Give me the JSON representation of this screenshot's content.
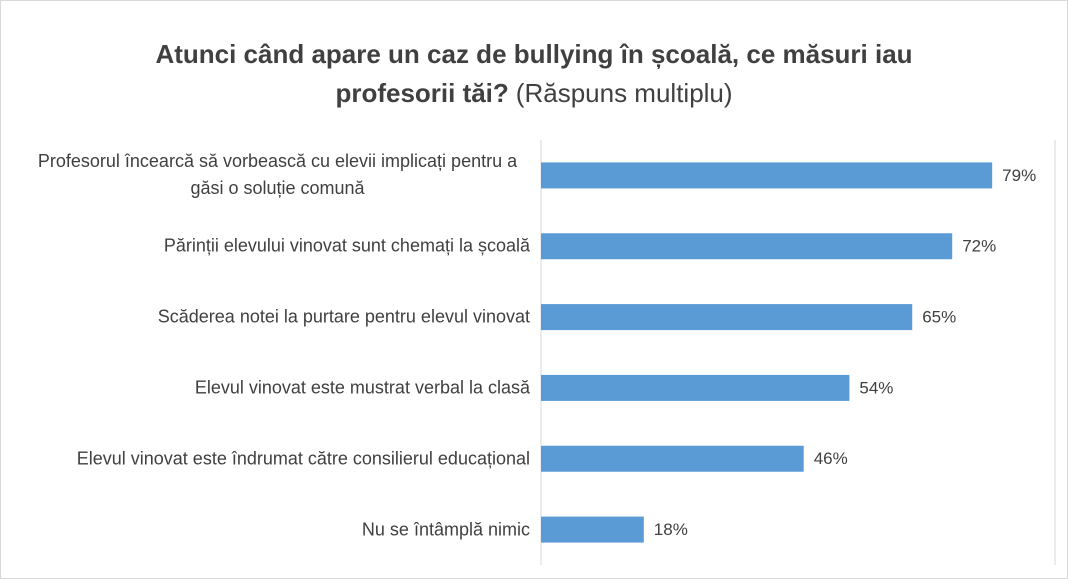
{
  "chart_data": {
    "type": "barh",
    "title": [
      "Atunci când apare un caz de bullying în școală, ce măsuri iau",
      "profesorii tăi?"
    ],
    "subtitle": "(Răspuns multiplu)",
    "categories": [
      "Profesorul încearcă să vorbească cu elevii implicați pentru a găsi o soluție comună",
      "Părinții elevului vinovat sunt chemați la școală",
      "Scăderea notei la purtare pentru elevul vinovat",
      "Elevul vinovat este mustrat verbal la clasă",
      "Elevul vinovat este îndrumat către consilierul educațional",
      "Nu se întâmplă nimic"
    ],
    "values": [
      79,
      72,
      65,
      54,
      46,
      18
    ],
    "value_labels": [
      "79%",
      "72%",
      "65%",
      "54%",
      "46%",
      "18%"
    ],
    "color": "#5b9bd5",
    "xlim": [
      0,
      90
    ]
  }
}
